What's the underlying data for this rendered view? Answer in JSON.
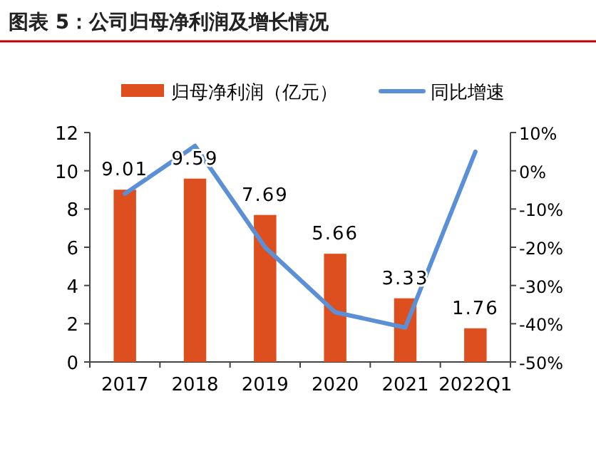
{
  "chart_data": {
    "type": "bar",
    "title": "图表 5：公司归母净利润及增长情况",
    "categories": [
      "2017",
      "2018",
      "2019",
      "2020",
      "2021",
      "2022Q1"
    ],
    "series": [
      {
        "name": "归母净利润（亿元）",
        "color": "#dd4f1f",
        "values": [
          9.01,
          9.59,
          7.69,
          5.66,
          3.33,
          1.76
        ],
        "value_labels": [
          "9.01",
          "9.59",
          "7.69",
          "5.66",
          "3.33",
          "1.76"
        ]
      },
      {
        "name": "同比增速",
        "type": "line",
        "axis": "y2",
        "color": "#5b8fd6",
        "values": [
          -6,
          6.5,
          -20,
          -37,
          -41,
          5
        ]
      }
    ],
    "ylim": [
      0,
      12
    ],
    "yticks": [
      0,
      2,
      4,
      6,
      8,
      10,
      12
    ],
    "y2lim": [
      -50,
      10
    ],
    "y2ticks": [
      {
        "value": -50,
        "label": "-50%"
      },
      {
        "value": -40,
        "label": "-40%"
      },
      {
        "value": -30,
        "label": "-30%"
      },
      {
        "value": -20,
        "label": "-20%"
      },
      {
        "value": -10,
        "label": "-10%"
      },
      {
        "value": 0,
        "label": "0%"
      },
      {
        "value": 10,
        "label": "10%"
      }
    ],
    "legend": "top",
    "grid": false
  }
}
